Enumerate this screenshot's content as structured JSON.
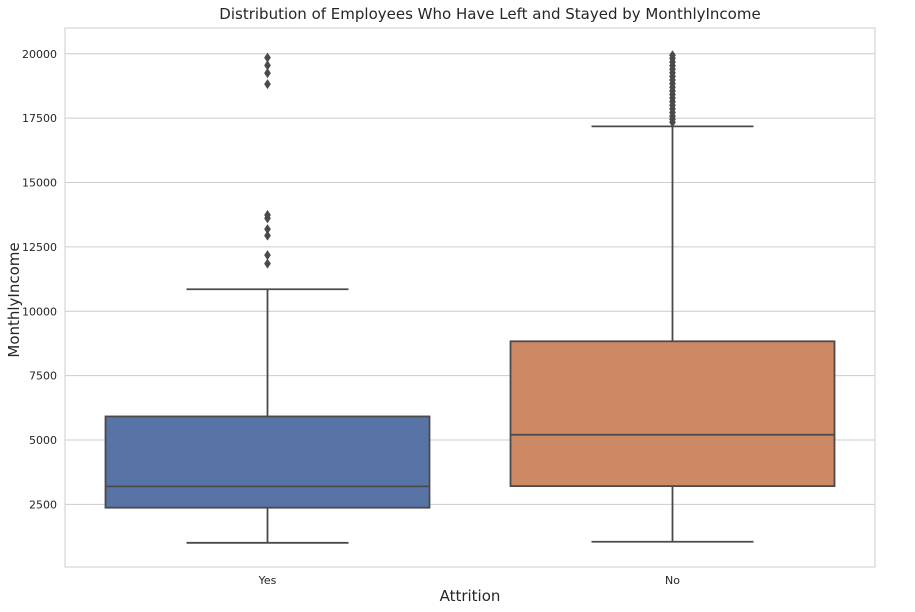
{
  "chart_data": {
    "type": "box",
    "title": "Distribution of Employees Who Have Left and Stayed by MonthlyIncome",
    "xlabel": "Attrition",
    "ylabel": "MonthlyIncome",
    "ylim": [
      70,
      21000
    ],
    "yticks": [
      2500,
      5000,
      7500,
      10000,
      12500,
      15000,
      17500,
      20000
    ],
    "grid": true,
    "categories": [
      "Yes",
      "No"
    ],
    "boxes": [
      {
        "category": "Yes",
        "color": "#5874a6",
        "whisker_low": 1009,
        "q1": 2373,
        "median": 3202,
        "q3": 5916,
        "whisker_high": 10854,
        "outliers": [
          11850,
          12180,
          12940,
          13190,
          13610,
          13740,
          18820,
          19250,
          19550,
          19850
        ]
      },
      {
        "category": "No",
        "color": "#cc8963",
        "whisker_low": 1051,
        "q1": 3211,
        "median": 5204,
        "q3": 8834,
        "whisker_high": 17181,
        "outliers": [
          17340,
          17460,
          17580,
          17720,
          17860,
          18000,
          18140,
          18280,
          18420,
          18560,
          18700,
          18840,
          18980,
          19120,
          19260,
          19400,
          19540,
          19680,
          19820,
          19940
        ]
      }
    ],
    "style": {
      "edge_color": "#4a4a4a",
      "grid_color": "#cccccc",
      "frame_color": "#cccccc"
    }
  }
}
